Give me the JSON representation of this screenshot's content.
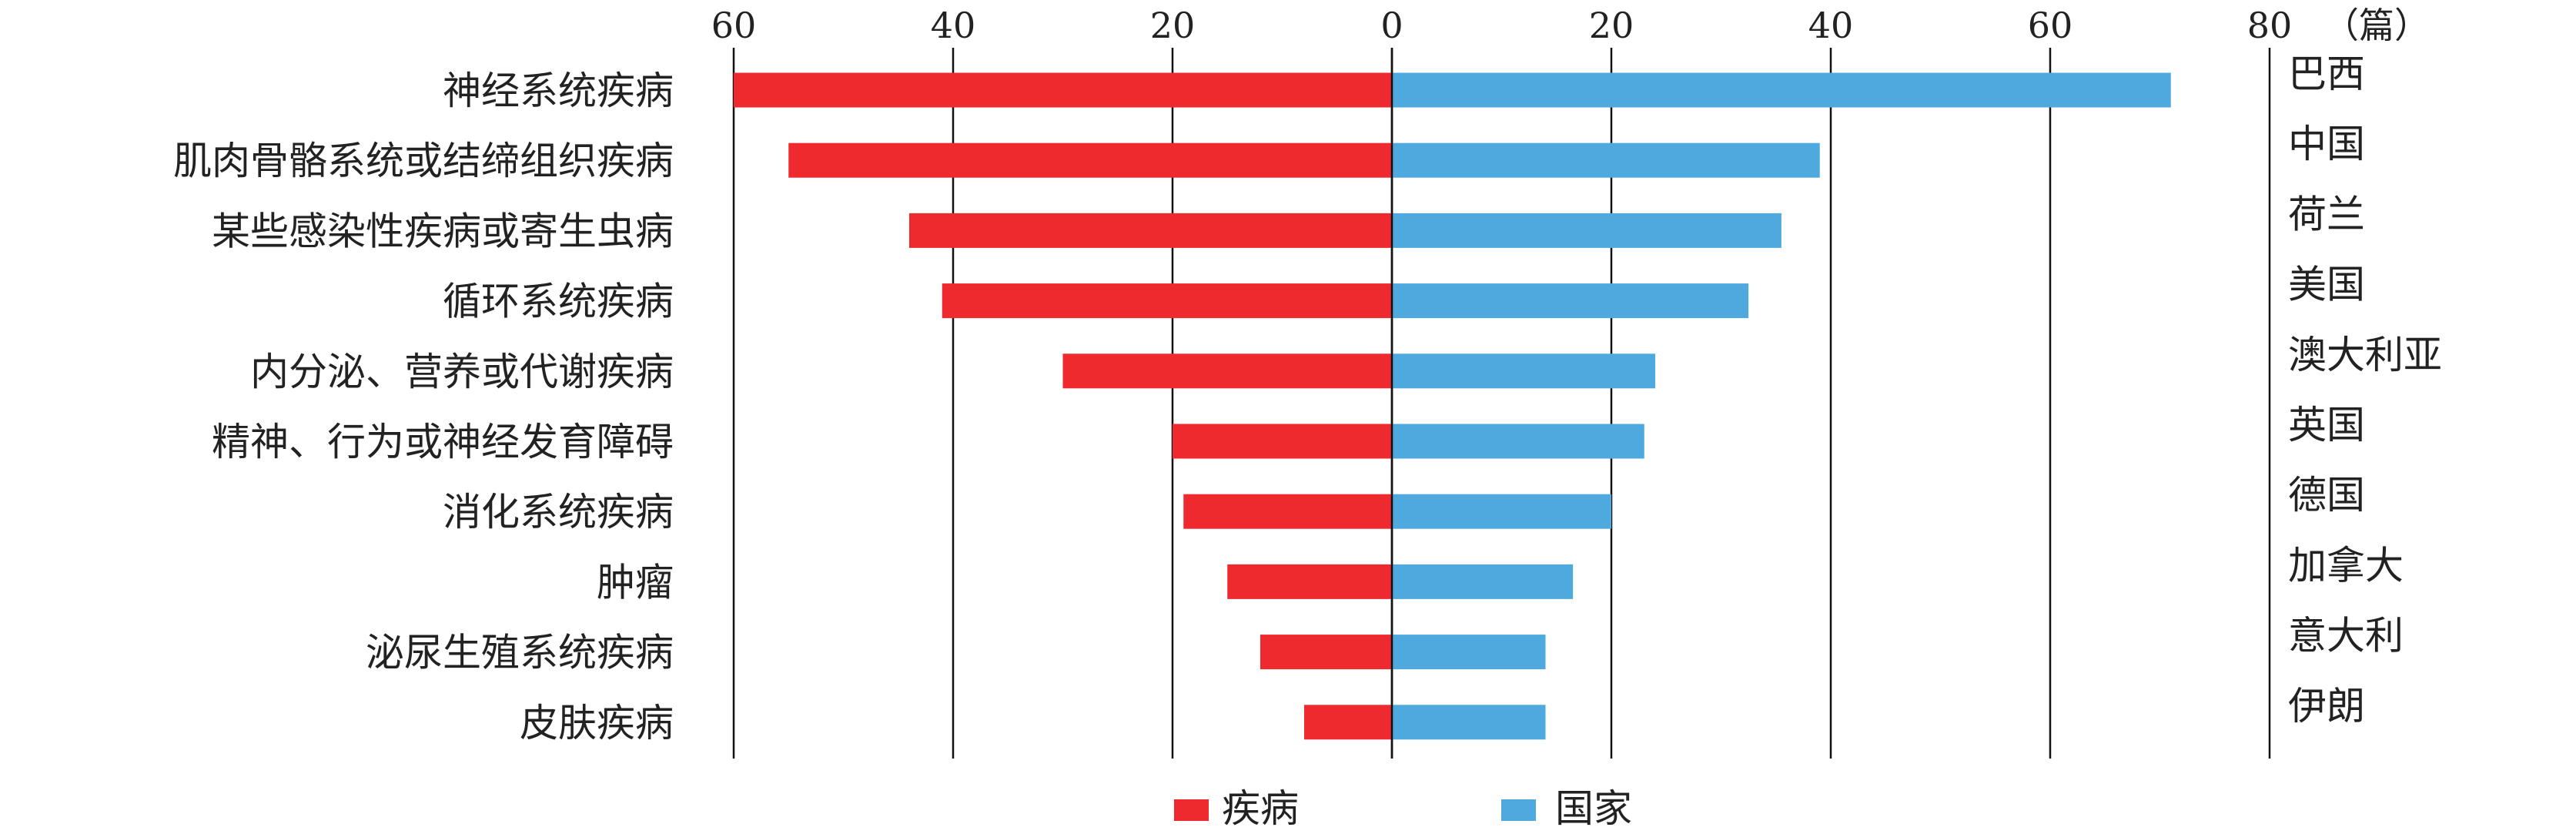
{
  "chart_data": {
    "type": "bar",
    "layout": "back-to-back horizontal",
    "unit": "（篇）",
    "x_ticks": [
      "60",
      "40",
      "20",
      "0",
      "20",
      "40",
      "60",
      "80"
    ],
    "left_xlim": [
      0,
      60
    ],
    "right_xlim": [
      0,
      80
    ],
    "grid": "vertical",
    "legend_position": "bottom",
    "series": [
      {
        "name": "疾病",
        "color": "#ee2a2f",
        "categories": [
          "神经系统疾病",
          "肌肉骨骼系统或结缔组织疾病",
          "某些感染性疾病或寄生虫病",
          "循环系统疾病",
          "内分泌、营养或代谢疾病",
          "精神、行为或神经发育障碍",
          "消化系统疾病",
          "肿瘤",
          "泌尿生殖系统疾病",
          "皮肤疾病"
        ],
        "values": [
          60,
          55,
          44,
          41,
          30,
          20,
          19,
          15,
          12,
          8
        ]
      },
      {
        "name": "国家",
        "color": "#4eaade",
        "categories": [
          "巴西",
          "中国",
          "荷兰",
          "美国",
          "澳大利亚",
          "英国",
          "德国",
          "加拿大",
          "意大利",
          "伊朗"
        ],
        "values": [
          71,
          39,
          35.5,
          32.5,
          24,
          23,
          20,
          16.5,
          14,
          14
        ]
      }
    ]
  }
}
